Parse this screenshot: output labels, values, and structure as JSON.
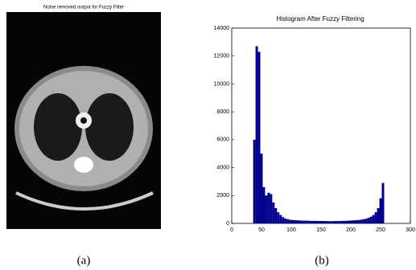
{
  "image_panel": {
    "title": "Noise removed output for Fuzzy Filter",
    "caption": "(a)"
  },
  "chart_data": {
    "type": "histogram",
    "title": "Histogram After Fuzzy Filtering",
    "caption": "(b)",
    "color": "#00008b",
    "bins": [
      36,
      40,
      44,
      48,
      52,
      56,
      60,
      64,
      68,
      72,
      76,
      80,
      84,
      88,
      92,
      96,
      100,
      104,
      108,
      112,
      116,
      120,
      124,
      128,
      132,
      136,
      140,
      144,
      148,
      152,
      156,
      160,
      164,
      168,
      172,
      176,
      180,
      184,
      188,
      192,
      196,
      200,
      204,
      208,
      212,
      216,
      220,
      224,
      228,
      232,
      236,
      240,
      244,
      248,
      252,
      256
    ],
    "counts": [
      6000,
      12700,
      12300,
      5000,
      2600,
      2000,
      2200,
      2100,
      1500,
      1100,
      800,
      600,
      450,
      350,
      300,
      260,
      240,
      230,
      220,
      210,
      200,
      200,
      190,
      190,
      180,
      180,
      180,
      170,
      170,
      170,
      170,
      160,
      160,
      160,
      170,
      170,
      170,
      180,
      180,
      190,
      200,
      210,
      220,
      230,
      250,
      270,
      300,
      340,
      400,
      480,
      600,
      800,
      1100,
      1800,
      2900
    ],
    "xlim": [
      0,
      300
    ],
    "ylim": [
      0,
      14000
    ],
    "xticks": [
      0,
      50,
      100,
      150,
      200,
      250,
      300
    ],
    "yticks": [
      0,
      2000,
      4000,
      6000,
      8000,
      10000,
      12000,
      14000
    ]
  }
}
